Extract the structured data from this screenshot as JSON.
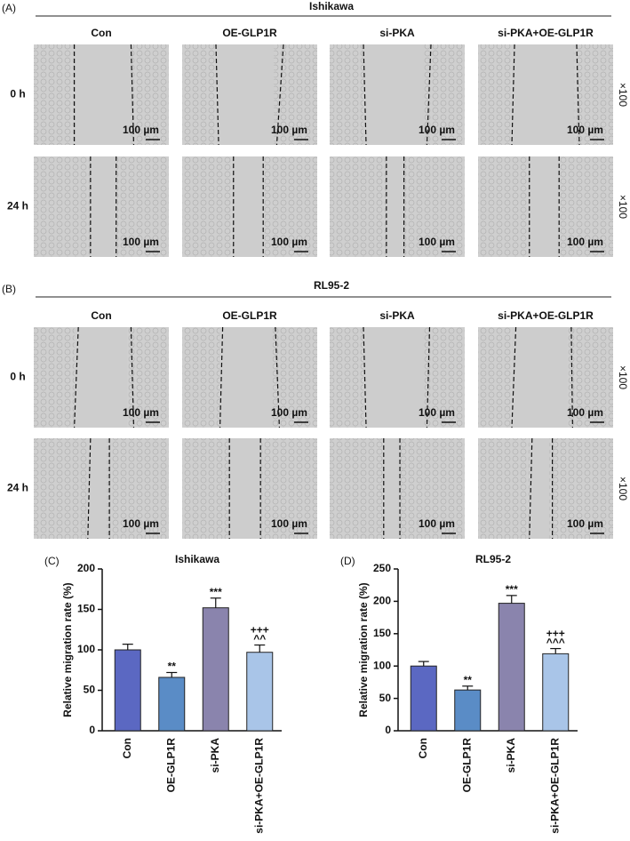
{
  "panel_a": {
    "label": "(A)",
    "title": "Ishikawa",
    "columns": [
      "Con",
      "OE-GLP1R",
      "si-PKA",
      "si-PKA+OE-GLP1R"
    ],
    "rows": [
      "0 h",
      "24 h"
    ],
    "scale_bar": "100 µm",
    "magnification": "×100"
  },
  "panel_b": {
    "label": "(B)",
    "title": "RL95-2",
    "columns": [
      "Con",
      "OE-GLP1R",
      "si-PKA",
      "si-PKA+OE-GLP1R"
    ],
    "rows": [
      "0 h",
      "24 h"
    ],
    "scale_bar": "100 µm",
    "magnification": "×100"
  },
  "chart_data": [
    {
      "type": "bar",
      "label": "(C)",
      "title": "Ishikawa",
      "y_label": "Relative migration rate (%)",
      "categories": [
        "Con",
        "OE-GLP1R",
        "si-PKA",
        "si-PKA+OE-GLP1R"
      ],
      "values": [
        100,
        66,
        152,
        97
      ],
      "errors": [
        7,
        6,
        12,
        9
      ],
      "colors": [
        "#5b68c2",
        "#5a8cc6",
        "#8a84ad",
        "#a9c5e8"
      ],
      "annotations": [
        [],
        [
          "**"
        ],
        [
          "***"
        ],
        [
          "+++",
          "^^"
        ]
      ],
      "ylim": [
        0,
        200
      ],
      "yticks": [
        0,
        50,
        100,
        150,
        200
      ]
    },
    {
      "type": "bar",
      "label": "(D)",
      "title": "RL95-2",
      "y_label": "Relative migration rate (%)",
      "categories": [
        "Con",
        "OE-GLP1R",
        "si-PKA",
        "si-PKA+OE-GLP1R"
      ],
      "values": [
        100,
        63,
        197,
        119
      ],
      "errors": [
        7,
        6,
        12,
        8
      ],
      "colors": [
        "#5b68c2",
        "#5a8cc6",
        "#8a84ad",
        "#a9c5e8"
      ],
      "annotations": [
        [],
        [
          "**"
        ],
        [
          "***"
        ],
        [
          "+++",
          "^^^"
        ]
      ],
      "ylim": [
        0,
        250
      ],
      "yticks": [
        0,
        50,
        100,
        150,
        200,
        250
      ]
    }
  ]
}
